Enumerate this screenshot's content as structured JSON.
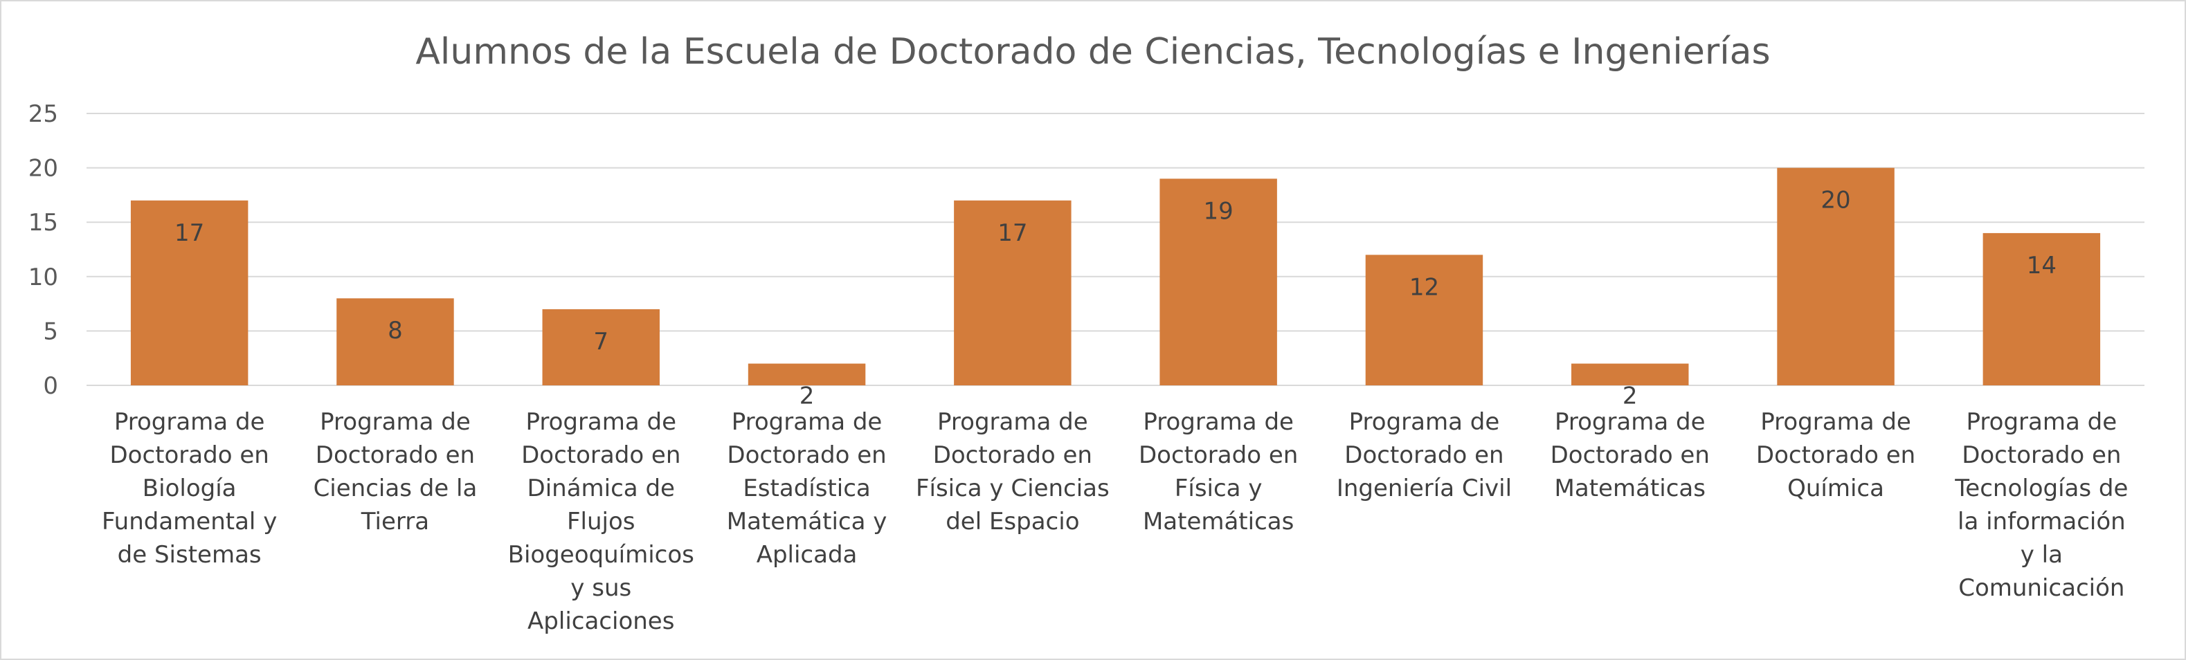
{
  "chart_data": {
    "type": "bar",
    "title": "Alumnos de la Escuela de Doctorado de Ciencias, Tecnologías e Ingenierías",
    "xlabel": "",
    "ylabel": "",
    "ylim": [
      0,
      25
    ],
    "yticks": [
      0,
      5,
      10,
      15,
      20,
      25
    ],
    "grid": true,
    "legend": "none",
    "bar_color": "#D37C3B",
    "categories": [
      [
        "Programa de",
        "Doctorado en",
        "Biología",
        "Fundamental y",
        "de Sistemas"
      ],
      [
        "Programa de",
        "Doctorado en",
        "Ciencias de la",
        "Tierra"
      ],
      [
        "Programa de",
        "Doctorado en",
        "Dinámica de",
        "Flujos",
        "Biogeoquímicos",
        "y sus",
        "Aplicaciones"
      ],
      [
        "Programa de",
        "Doctorado en",
        "Estadística",
        "Matemática y",
        "Aplicada"
      ],
      [
        "Programa de",
        "Doctorado en",
        "Física y Ciencias",
        "del Espacio"
      ],
      [
        "Programa de",
        "Doctorado en",
        "Física y",
        "Matemáticas"
      ],
      [
        "Programa de",
        "Doctorado en",
        "Ingeniería Civil"
      ],
      [
        "Programa de",
        "Doctorado en",
        "Matemáticas"
      ],
      [
        "Programa de",
        "Doctorado en",
        "Química"
      ],
      [
        "Programa de",
        "Doctorado en",
        "Tecnologías de",
        "la información",
        "y la",
        "Comunicación"
      ]
    ],
    "values": [
      17,
      8,
      7,
      2,
      17,
      19,
      12,
      2,
      20,
      14
    ]
  }
}
